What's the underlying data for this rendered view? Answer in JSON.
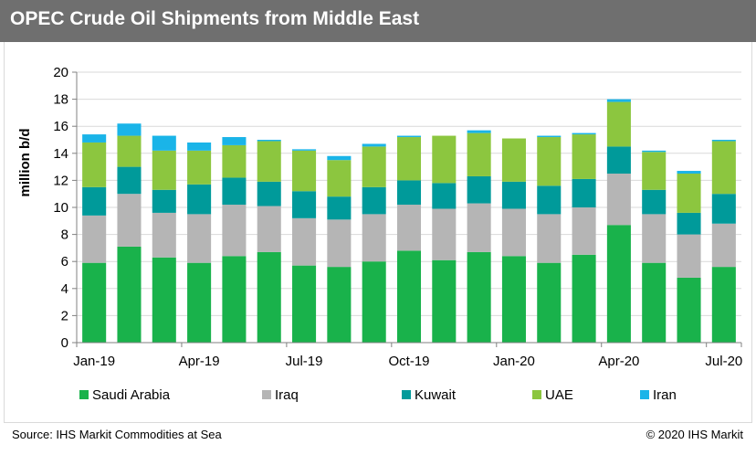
{
  "title": "OPEC Crude Oil Shipments from Middle East",
  "source": "Source: IHS Markit Commodities at Sea",
  "copyright": "© 2020 IHS Markit",
  "chart_data": {
    "type": "bar",
    "stacked": true,
    "ylabel": "million b/d",
    "xlabel": "",
    "ylim": [
      0,
      20
    ],
    "yticks": [
      0,
      2,
      4,
      6,
      8,
      10,
      12,
      14,
      16,
      18,
      20
    ],
    "grid": true,
    "legend": "bottom",
    "categories": [
      "Jan-19",
      "Feb-19",
      "Mar-19",
      "Apr-19",
      "May-19",
      "Jun-19",
      "Jul-19",
      "Aug-19",
      "Sep-19",
      "Oct-19",
      "Nov-19",
      "Dec-19",
      "Jan-20",
      "Feb-20",
      "Mar-20",
      "Apr-20",
      "May-20",
      "Jun-20",
      "Jul-20"
    ],
    "xtick_labels": [
      "Jan-19",
      "",
      "",
      "Apr-19",
      "",
      "",
      "Jul-19",
      "",
      "",
      "Oct-19",
      "",
      "",
      "Jan-20",
      "",
      "",
      "Apr-20",
      "",
      "",
      "Jul-20"
    ],
    "series": [
      {
        "name": "Saudi Arabia",
        "color": "#19b24b",
        "values": [
          5.9,
          7.1,
          6.3,
          5.9,
          6.4,
          6.7,
          5.7,
          5.6,
          6.0,
          6.8,
          6.1,
          6.7,
          6.4,
          5.9,
          6.5,
          8.7,
          5.9,
          4.8,
          5.6
        ]
      },
      {
        "name": "Iraq",
        "color": "#b5b5b5",
        "values": [
          3.5,
          3.9,
          3.3,
          3.6,
          3.8,
          3.4,
          3.5,
          3.5,
          3.5,
          3.4,
          3.8,
          3.6,
          3.5,
          3.6,
          3.5,
          3.8,
          3.6,
          3.2,
          3.2
        ]
      },
      {
        "name": "Kuwait",
        "color": "#009a9a",
        "values": [
          2.1,
          2.0,
          1.7,
          2.2,
          2.0,
          1.8,
          2.0,
          1.7,
          2.0,
          1.8,
          1.9,
          2.0,
          2.0,
          2.1,
          2.1,
          2.0,
          1.8,
          1.6,
          2.2
        ]
      },
      {
        "name": "UAE",
        "color": "#8cc63f",
        "values": [
          3.3,
          2.3,
          2.9,
          2.5,
          2.4,
          3.0,
          3.0,
          2.7,
          3.0,
          3.2,
          3.5,
          3.2,
          3.2,
          3.6,
          3.3,
          3.3,
          2.8,
          2.9,
          3.9
        ]
      },
      {
        "name": "Iran",
        "color": "#1ab4e8",
        "values": [
          0.6,
          0.9,
          1.1,
          0.6,
          0.6,
          0.1,
          0.1,
          0.3,
          0.2,
          0.1,
          0.0,
          0.2,
          0.0,
          0.1,
          0.1,
          0.2,
          0.1,
          0.2,
          0.1
        ]
      }
    ]
  }
}
